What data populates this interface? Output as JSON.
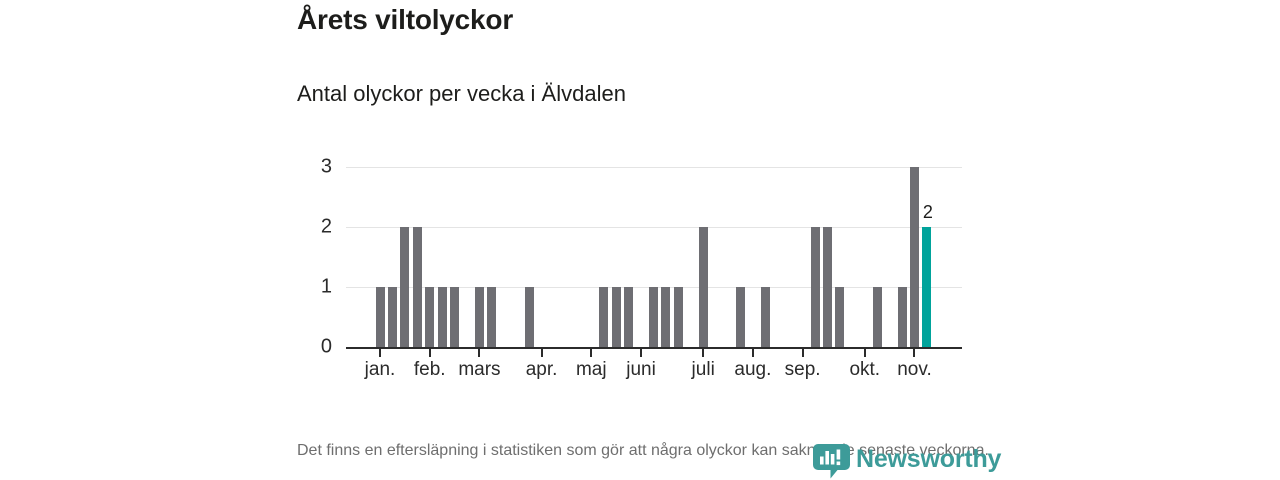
{
  "header": {
    "title": "Årets viltolyckor",
    "subtitle": "Antal olyckor per vecka i Älvdalen"
  },
  "chart_data": {
    "type": "bar",
    "title": "Årets viltolyckor",
    "subtitle": "Antal olyckor per vecka i Älvdalen",
    "x_unit": "vecka",
    "weeks": [
      1,
      2,
      3,
      4,
      5,
      6,
      7,
      8,
      9,
      10,
      11,
      12,
      13,
      14,
      15,
      16,
      17,
      18,
      19,
      20,
      21,
      22,
      23,
      24,
      25,
      26,
      27,
      28,
      29,
      30,
      31,
      32,
      33,
      34,
      35,
      36,
      37,
      38,
      39,
      40,
      41,
      42,
      43,
      44,
      45
    ],
    "values": [
      1,
      1,
      2,
      2,
      1,
      1,
      1,
      0,
      1,
      1,
      0,
      0,
      1,
      0,
      0,
      0,
      0,
      0,
      1,
      1,
      1,
      0,
      1,
      1,
      1,
      0,
      2,
      0,
      0,
      1,
      0,
      1,
      0,
      0,
      0,
      2,
      2,
      1,
      0,
      0,
      1,
      0,
      1,
      3,
      2
    ],
    "month_ticks": [
      {
        "week": 1,
        "label": "jan."
      },
      {
        "week": 5,
        "label": "feb."
      },
      {
        "week": 9,
        "label": "mars"
      },
      {
        "week": 14,
        "label": "apr."
      },
      {
        "week": 18,
        "label": "maj"
      },
      {
        "week": 22,
        "label": "juni"
      },
      {
        "week": 27,
        "label": "juli"
      },
      {
        "week": 31,
        "label": "aug."
      },
      {
        "week": 35,
        "label": "sep."
      },
      {
        "week": 40,
        "label": "okt."
      },
      {
        "week": 44,
        "label": "nov."
      }
    ],
    "yticks": [
      0,
      1,
      2,
      3
    ],
    "ylim": [
      0,
      3
    ],
    "grid": "horizontal",
    "bar_color": "#6e6e73",
    "highlight_color": "#00a39b",
    "highlight_week": 45,
    "annotation": {
      "week": 45,
      "text": "2"
    }
  },
  "footer": {
    "note": "Det finns en eftersläpning i statistiken som gör att några olyckor kan saknas de senaste veckorna."
  },
  "logo": {
    "text": "Newsworthy",
    "color": "#3d9b99",
    "icon": "newsworthy-bubble-bar-chart-icon"
  }
}
